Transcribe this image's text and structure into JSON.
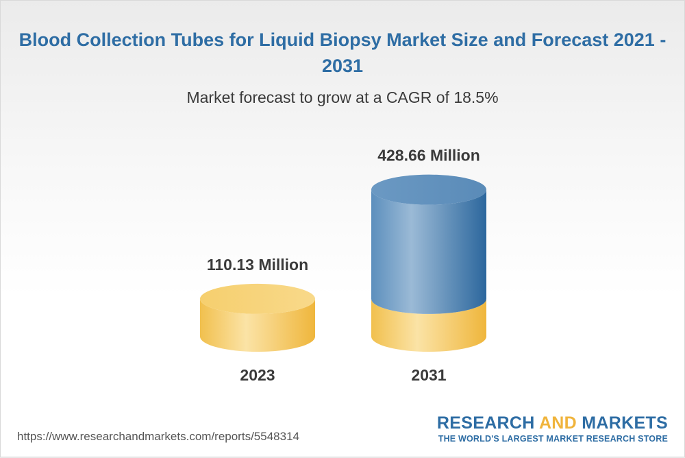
{
  "header": {
    "title": "Blood Collection Tubes for Liquid Biopsy Market Size and Forecast 2021 - 2031",
    "subtitle": "Market forecast to grow at a CAGR of 18.5%"
  },
  "chart_data": {
    "type": "bar",
    "style": "3d-cylinder",
    "categories": [
      "2023",
      "2031"
    ],
    "values": [
      110.13,
      428.66
    ],
    "data_labels": [
      "110.13 Million",
      "428.66 Million"
    ],
    "base_value": 110.13,
    "colors": {
      "base": "#f2c04d",
      "growth": "#3a76ab"
    },
    "title": "Blood Collection Tubes for Liquid Biopsy Market Size and Forecast 2021 - 2031",
    "subtitle": "Market forecast to grow at a CAGR of 18.5%",
    "xlabel": "",
    "ylabel": "",
    "grid": false
  },
  "footer": {
    "url": "https://www.researchandmarkets.com/reports/5548314",
    "logo": {
      "word1": "RESEARCH",
      "word2": "AND",
      "word3": "MARKETS",
      "tagline": "THE WORLD'S LARGEST MARKET RESEARCH STORE"
    }
  }
}
